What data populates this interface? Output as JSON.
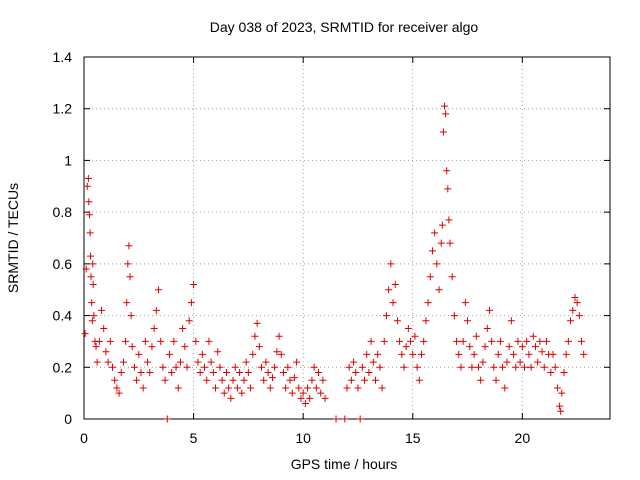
{
  "chart_data": {
    "type": "scatter",
    "title": "Day 038 of 2023, SRMTID for receiver algo",
    "xlabel": "GPS time / hours",
    "ylabel": "SRMTID / TECUs",
    "xlim": [
      0,
      24
    ],
    "ylim": [
      0,
      1.4
    ],
    "xticks": [
      0,
      5,
      10,
      15,
      20
    ],
    "xtick_labels": [
      "0",
      "5",
      "10",
      "15",
      "20"
    ],
    "yticks": [
      0,
      0.2,
      0.4,
      0.6,
      0.8,
      1.0,
      1.2,
      1.4
    ],
    "ytick_labels": [
      "0",
      "0.2",
      "0.4",
      "0.6",
      "0.8",
      "1",
      "1.2",
      "1.4"
    ],
    "grid": true,
    "marker": "+",
    "marker_color": "#e00000",
    "series": [
      {
        "name": "SRMTID",
        "points": [
          [
            0.05,
            0.33
          ],
          [
            0.1,
            0.58
          ],
          [
            0.15,
            0.9
          ],
          [
            0.2,
            0.93
          ],
          [
            0.22,
            0.84
          ],
          [
            0.25,
            0.79
          ],
          [
            0.28,
            0.72
          ],
          [
            0.3,
            0.63
          ],
          [
            0.32,
            0.55
          ],
          [
            0.35,
            0.45
          ],
          [
            0.38,
            0.38
          ],
          [
            0.4,
            0.6
          ],
          [
            0.42,
            0.52
          ],
          [
            0.45,
            0.4
          ],
          [
            0.5,
            0.3
          ],
          [
            0.55,
            0.28
          ],
          [
            0.6,
            0.22
          ],
          [
            0.7,
            0.3
          ],
          [
            0.8,
            0.42
          ],
          [
            0.9,
            0.35
          ],
          [
            1.0,
            0.26
          ],
          [
            1.1,
            0.22
          ],
          [
            1.2,
            0.3
          ],
          [
            1.3,
            0.2
          ],
          [
            1.4,
            0.15
          ],
          [
            1.5,
            0.12
          ],
          [
            1.6,
            0.1
          ],
          [
            1.7,
            0.18
          ],
          [
            1.8,
            0.22
          ],
          [
            1.9,
            0.3
          ],
          [
            1.95,
            0.45
          ],
          [
            2.0,
            0.6
          ],
          [
            2.05,
            0.67
          ],
          [
            2.1,
            0.55
          ],
          [
            2.15,
            0.4
          ],
          [
            2.2,
            0.28
          ],
          [
            2.3,
            0.2
          ],
          [
            2.4,
            0.15
          ],
          [
            2.5,
            0.25
          ],
          [
            2.6,
            0.18
          ],
          [
            2.7,
            0.12
          ],
          [
            2.8,
            0.3
          ],
          [
            2.9,
            0.22
          ],
          [
            3.0,
            0.18
          ],
          [
            3.1,
            0.28
          ],
          [
            3.2,
            0.35
          ],
          [
            3.3,
            0.42
          ],
          [
            3.4,
            0.5
          ],
          [
            3.5,
            0.3
          ],
          [
            3.6,
            0.2
          ],
          [
            3.7,
            0.15
          ],
          [
            3.8,
            0.0
          ],
          [
            3.9,
            0.25
          ],
          [
            4.0,
            0.18
          ],
          [
            4.1,
            0.3
          ],
          [
            4.2,
            0.2
          ],
          [
            4.3,
            0.12
          ],
          [
            4.4,
            0.22
          ],
          [
            4.5,
            0.35
          ],
          [
            4.6,
            0.28
          ],
          [
            4.7,
            0.2
          ],
          [
            4.8,
            0.38
          ],
          [
            4.9,
            0.45
          ],
          [
            5.0,
            0.52
          ],
          [
            5.1,
            0.3
          ],
          [
            5.2,
            0.22
          ],
          [
            5.3,
            0.18
          ],
          [
            5.4,
            0.25
          ],
          [
            5.5,
            0.2
          ],
          [
            5.6,
            0.15
          ],
          [
            5.7,
            0.3
          ],
          [
            5.8,
            0.22
          ],
          [
            5.9,
            0.18
          ],
          [
            6.0,
            0.12
          ],
          [
            6.1,
            0.26
          ],
          [
            6.2,
            0.2
          ],
          [
            6.3,
            0.15
          ],
          [
            6.4,
            0.1
          ],
          [
            6.5,
            0.18
          ],
          [
            6.6,
            0.12
          ],
          [
            6.7,
            0.08
          ],
          [
            6.8,
            0.15
          ],
          [
            6.9,
            0.2
          ],
          [
            7.0,
            0.12
          ],
          [
            7.1,
            0.18
          ],
          [
            7.2,
            0.1
          ],
          [
            7.3,
            0.15
          ],
          [
            7.4,
            0.22
          ],
          [
            7.5,
            0.18
          ],
          [
            7.6,
            0.12
          ],
          [
            7.7,
            0.25
          ],
          [
            7.8,
            0.32
          ],
          [
            7.9,
            0.37
          ],
          [
            8.0,
            0.28
          ],
          [
            8.1,
            0.2
          ],
          [
            8.2,
            0.15
          ],
          [
            8.3,
            0.22
          ],
          [
            8.4,
            0.18
          ],
          [
            8.5,
            0.12
          ],
          [
            8.6,
            0.16
          ],
          [
            8.7,
            0.2
          ],
          [
            8.8,
            0.26
          ],
          [
            8.9,
            0.32
          ],
          [
            9.0,
            0.25
          ],
          [
            9.1,
            0.18
          ],
          [
            9.2,
            0.12
          ],
          [
            9.3,
            0.2
          ],
          [
            9.4,
            0.15
          ],
          [
            9.5,
            0.1
          ],
          [
            9.6,
            0.16
          ],
          [
            9.7,
            0.22
          ],
          [
            9.8,
            0.12
          ],
          [
            9.9,
            0.08
          ],
          [
            10.0,
            0.1
          ],
          [
            10.1,
            0.06
          ],
          [
            10.2,
            0.12
          ],
          [
            10.3,
            0.08
          ],
          [
            10.4,
            0.15
          ],
          [
            10.5,
            0.2
          ],
          [
            10.6,
            0.12
          ],
          [
            10.7,
            0.18
          ],
          [
            10.8,
            0.1
          ],
          [
            10.9,
            0.15
          ],
          [
            11.0,
            0.08
          ],
          [
            11.5,
            0.0
          ],
          [
            11.9,
            0.0
          ],
          [
            12.0,
            0.12
          ],
          [
            12.1,
            0.2
          ],
          [
            12.2,
            0.15
          ],
          [
            12.3,
            0.22
          ],
          [
            12.4,
            0.18
          ],
          [
            12.5,
            0.12
          ],
          [
            12.6,
            0.0
          ],
          [
            12.7,
            0.2
          ],
          [
            12.8,
            0.15
          ],
          [
            12.9,
            0.25
          ],
          [
            13.0,
            0.18
          ],
          [
            13.1,
            0.3
          ],
          [
            13.2,
            0.22
          ],
          [
            13.3,
            0.15
          ],
          [
            13.4,
            0.25
          ],
          [
            13.5,
            0.2
          ],
          [
            13.6,
            0.12
          ],
          [
            13.7,
            0.3
          ],
          [
            13.8,
            0.4
          ],
          [
            13.9,
            0.5
          ],
          [
            14.0,
            0.6
          ],
          [
            14.1,
            0.45
          ],
          [
            14.2,
            0.52
          ],
          [
            14.3,
            0.38
          ],
          [
            14.4,
            0.3
          ],
          [
            14.5,
            0.25
          ],
          [
            14.6,
            0.2
          ],
          [
            14.7,
            0.28
          ],
          [
            14.8,
            0.35
          ],
          [
            14.9,
            0.3
          ],
          [
            15.0,
            0.25
          ],
          [
            15.1,
            0.32
          ],
          [
            15.2,
            0.2
          ],
          [
            15.3,
            0.15
          ],
          [
            15.4,
            0.25
          ],
          [
            15.5,
            0.3
          ],
          [
            15.6,
            0.38
          ],
          [
            15.7,
            0.45
          ],
          [
            15.8,
            0.55
          ],
          [
            15.9,
            0.65
          ],
          [
            16.0,
            0.72
          ],
          [
            16.1,
            0.6
          ],
          [
            16.2,
            0.5
          ],
          [
            16.3,
            0.68
          ],
          [
            16.35,
            0.75
          ],
          [
            16.4,
            1.11
          ],
          [
            16.45,
            1.21
          ],
          [
            16.5,
            1.18
          ],
          [
            16.55,
            0.96
          ],
          [
            16.6,
            0.89
          ],
          [
            16.65,
            0.77
          ],
          [
            16.7,
            0.68
          ],
          [
            16.8,
            0.55
          ],
          [
            16.9,
            0.4
          ],
          [
            17.0,
            0.3
          ],
          [
            17.1,
            0.25
          ],
          [
            17.2,
            0.2
          ],
          [
            17.3,
            0.3
          ],
          [
            17.4,
            0.45
          ],
          [
            17.5,
            0.38
          ],
          [
            17.6,
            0.28
          ],
          [
            17.7,
            0.2
          ],
          [
            17.8,
            0.25
          ],
          [
            17.9,
            0.32
          ],
          [
            18.0,
            0.2
          ],
          [
            18.1,
            0.15
          ],
          [
            18.2,
            0.22
          ],
          [
            18.3,
            0.28
          ],
          [
            18.4,
            0.35
          ],
          [
            18.5,
            0.42
          ],
          [
            18.6,
            0.3
          ],
          [
            18.7,
            0.2
          ],
          [
            18.8,
            0.15
          ],
          [
            18.9,
            0.25
          ],
          [
            19.0,
            0.3
          ],
          [
            19.1,
            0.2
          ],
          [
            19.2,
            0.12
          ],
          [
            19.3,
            0.22
          ],
          [
            19.4,
            0.28
          ],
          [
            19.5,
            0.38
          ],
          [
            19.6,
            0.25
          ],
          [
            19.7,
            0.2
          ],
          [
            19.8,
            0.3
          ],
          [
            19.9,
            0.22
          ],
          [
            20.0,
            0.28
          ],
          [
            20.1,
            0.2
          ],
          [
            20.2,
            0.3
          ],
          [
            20.3,
            0.25
          ],
          [
            20.4,
            0.2
          ],
          [
            20.5,
            0.32
          ],
          [
            20.6,
            0.28
          ],
          [
            20.7,
            0.22
          ],
          [
            20.8,
            0.3
          ],
          [
            20.9,
            0.26
          ],
          [
            21.0,
            0.2
          ],
          [
            21.1,
            0.3
          ],
          [
            21.2,
            0.25
          ],
          [
            21.3,
            0.18
          ],
          [
            21.4,
            0.25
          ],
          [
            21.5,
            0.2
          ],
          [
            21.6,
            0.12
          ],
          [
            21.7,
            0.05
          ],
          [
            21.75,
            0.03
          ],
          [
            21.8,
            0.1
          ],
          [
            21.9,
            0.18
          ],
          [
            22.0,
            0.25
          ],
          [
            22.1,
            0.3
          ],
          [
            22.2,
            0.38
          ],
          [
            22.3,
            0.42
          ],
          [
            22.4,
            0.47
          ],
          [
            22.5,
            0.45
          ],
          [
            22.6,
            0.4
          ],
          [
            22.7,
            0.3
          ],
          [
            22.8,
            0.25
          ]
        ]
      }
    ]
  }
}
